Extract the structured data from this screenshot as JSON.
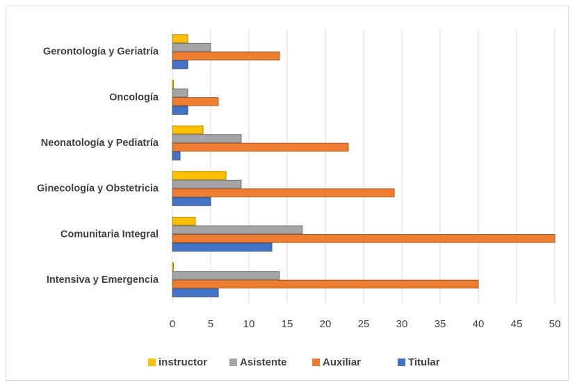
{
  "chart_data": {
    "type": "bar",
    "orientation": "horizontal",
    "categories": [
      "Gerontología y Geriatría",
      "Oncología",
      "Neonatología y Pediatría",
      "Ginecología y Obstetricia",
      "Comunitaria Integral",
      "Intensiva y Emergencia"
    ],
    "series": [
      {
        "name": "instructor",
        "color": "#ffc000",
        "values": [
          2,
          0,
          4,
          7,
          3,
          0
        ]
      },
      {
        "name": "Asistente",
        "color": "#a5a5a5",
        "values": [
          5,
          2,
          9,
          9,
          17,
          14
        ]
      },
      {
        "name": "Auxiliar",
        "color": "#ed7d31",
        "values": [
          14,
          6,
          23,
          29,
          50,
          40
        ]
      },
      {
        "name": "Titular",
        "color": "#4472c4",
        "values": [
          2,
          2,
          1,
          5,
          13,
          6
        ]
      }
    ],
    "xlim": [
      0,
      50
    ],
    "xticks": [
      0,
      5,
      10,
      15,
      20,
      25,
      30,
      35,
      40,
      45,
      50
    ],
    "grid": true,
    "legend": "bottom"
  }
}
